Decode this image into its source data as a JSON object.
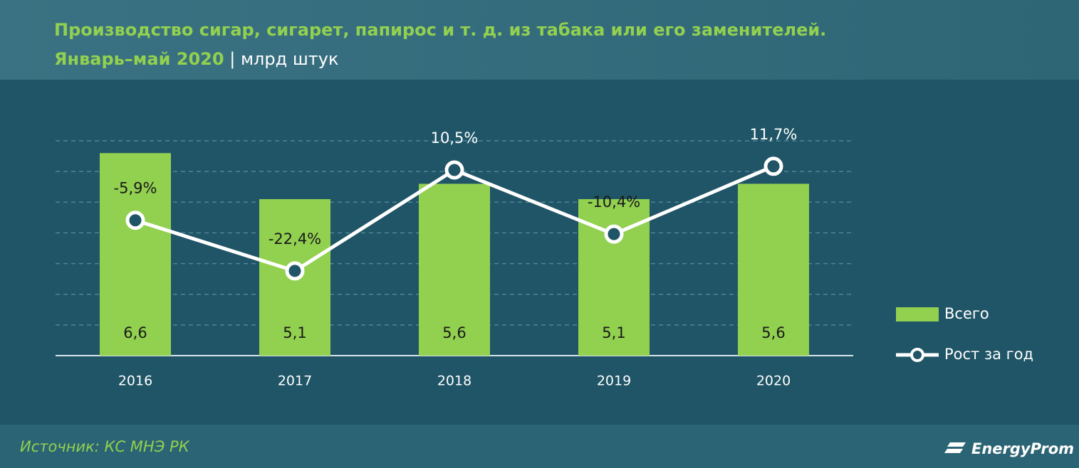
{
  "chart_data": {
    "type": "bar",
    "title": "Производство сигар, сигарет, папирос и т. д. из табака или его заменителей.",
    "subtitle": "Январь–май 2020",
    "unit": "млрд штук",
    "source": "Источник: КС МНЭ РК",
    "brand": "EnergyProm",
    "categories": [
      "2016",
      "2017",
      "2018",
      "2019",
      "2020"
    ],
    "series": [
      {
        "name": "Всего",
        "type": "bar",
        "color": "#92d050",
        "values": [
          6.6,
          5.1,
          5.6,
          5.1,
          5.6
        ],
        "value_labels": [
          "6,6",
          "5,1",
          "5,6",
          "5,1",
          "5,6"
        ]
      },
      {
        "name": "Рост за год",
        "type": "line",
        "axis": "y2",
        "color": "#ffffff",
        "values": [
          -5.9,
          -22.4,
          10.5,
          -10.4,
          11.7
        ],
        "value_labels": [
          "-5,9%",
          "-22,4%",
          "10,5%",
          "-10,4%",
          "11,7%"
        ]
      }
    ],
    "ylim": [
      0,
      7
    ],
    "yticks": [
      0,
      1,
      2,
      3,
      4,
      5,
      6,
      7
    ],
    "y2lim": [
      -50,
      20
    ],
    "grid": true,
    "legend": "right"
  }
}
